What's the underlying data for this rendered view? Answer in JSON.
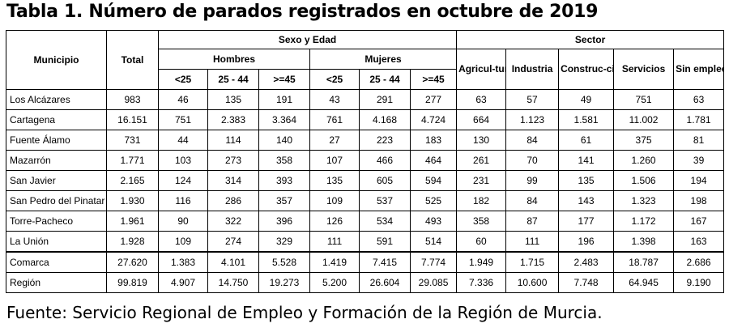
{
  "title": "Tabla 1. Número de parados registrados en octubre de 2019",
  "source": "Fuente: Servicio Regional de Empleo y Formación de la Región de Murcia.",
  "headers": {
    "municipio": "Municipio",
    "total": "Total",
    "sexo_edad": "Sexo y Edad",
    "sector": "Sector",
    "hombres": "Hombres",
    "mujeres": "Mujeres",
    "age_groups": [
      "<25",
      "25 - 44",
      ">=45"
    ],
    "agricultura": "Agricul-tura",
    "industria": "Industria",
    "construccion": "Construc-ción",
    "servicios": "Servicios",
    "sin_empleo": "Sin empleo anterior"
  },
  "rows": [
    {
      "name": "Los Alcázares",
      "total": "983",
      "h": [
        "46",
        "135",
        "191"
      ],
      "m": [
        "43",
        "291",
        "277"
      ],
      "s": [
        "63",
        "57",
        "49",
        "751",
        "63"
      ]
    },
    {
      "name": "Cartagena",
      "total": "16.151",
      "h": [
        "751",
        "2.383",
        "3.364"
      ],
      "m": [
        "761",
        "4.168",
        "4.724"
      ],
      "s": [
        "664",
        "1.123",
        "1.581",
        "11.002",
        "1.781"
      ]
    },
    {
      "name": "Fuente Álamo",
      "total": "731",
      "h": [
        "44",
        "114",
        "140"
      ],
      "m": [
        "27",
        "223",
        "183"
      ],
      "s": [
        "130",
        "84",
        "61",
        "375",
        "81"
      ]
    },
    {
      "name": "Mazarrón",
      "total": "1.771",
      "h": [
        "103",
        "273",
        "358"
      ],
      "m": [
        "107",
        "466",
        "464"
      ],
      "s": [
        "261",
        "70",
        "141",
        "1.260",
        "39"
      ]
    },
    {
      "name": "San Javier",
      "total": "2.165",
      "h": [
        "124",
        "314",
        "393"
      ],
      "m": [
        "135",
        "605",
        "594"
      ],
      "s": [
        "231",
        "99",
        "135",
        "1.506",
        "194"
      ]
    },
    {
      "name": "San Pedro del Pinatar",
      "total": "1.930",
      "h": [
        "116",
        "286",
        "357"
      ],
      "m": [
        "109",
        "537",
        "525"
      ],
      "s": [
        "182",
        "84",
        "143",
        "1.323",
        "198"
      ]
    },
    {
      "name": "Torre-Pacheco",
      "total": "1.961",
      "h": [
        "90",
        "322",
        "396"
      ],
      "m": [
        "126",
        "534",
        "493"
      ],
      "s": [
        "358",
        "87",
        "177",
        "1.172",
        "167"
      ]
    },
    {
      "name": "La Unión",
      "total": "1.928",
      "h": [
        "109",
        "274",
        "329"
      ],
      "m": [
        "111",
        "591",
        "514"
      ],
      "s": [
        "60",
        "111",
        "196",
        "1.398",
        "163"
      ]
    },
    {
      "name": "Comarca",
      "total": "27.620",
      "h": [
        "1.383",
        "4.101",
        "5.528"
      ],
      "m": [
        "1.419",
        "7.415",
        "7.774"
      ],
      "s": [
        "1.949",
        "1.715",
        "2.483",
        "18.787",
        "2.686"
      ]
    },
    {
      "name": "Región",
      "total": "99.819",
      "h": [
        "4.907",
        "14.750",
        "19.273"
      ],
      "m": [
        "5.200",
        "26.604",
        "29.085"
      ],
      "s": [
        "7.336",
        "10.600",
        "7.748",
        "64.945",
        "9.190"
      ]
    }
  ]
}
